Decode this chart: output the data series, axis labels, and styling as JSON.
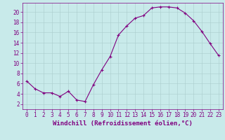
{
  "x": [
    0,
    1,
    2,
    3,
    4,
    5,
    6,
    7,
    8,
    9,
    10,
    11,
    12,
    13,
    14,
    15,
    16,
    17,
    18,
    19,
    20,
    21,
    22,
    23
  ],
  "y": [
    6.5,
    5.0,
    4.2,
    4.2,
    3.5,
    4.5,
    2.8,
    2.5,
    5.8,
    8.7,
    11.3,
    15.5,
    17.3,
    18.8,
    19.3,
    20.8,
    21.0,
    21.0,
    20.8,
    19.8,
    18.3,
    16.2,
    13.8,
    11.5
  ],
  "line_color": "#800080",
  "marker": "+",
  "marker_size": 3,
  "bg_color": "#c8eaea",
  "grid_color": "#aacccc",
  "xlabel": "Windchill (Refroidissement éolien,°C)",
  "xlim": [
    -0.5,
    23.5
  ],
  "ylim": [
    1.0,
    21.8
  ],
  "yticks": [
    2,
    4,
    6,
    8,
    10,
    12,
    14,
    16,
    18,
    20
  ],
  "xticks": [
    0,
    1,
    2,
    3,
    4,
    5,
    6,
    7,
    8,
    9,
    10,
    11,
    12,
    13,
    14,
    15,
    16,
    17,
    18,
    19,
    20,
    21,
    22,
    23
  ],
  "tick_color": "#800080",
  "axis_color": "#800080",
  "label_fontsize": 6.5,
  "tick_fontsize": 5.5,
  "line_width": 0.8,
  "marker_edge_width": 0.8
}
